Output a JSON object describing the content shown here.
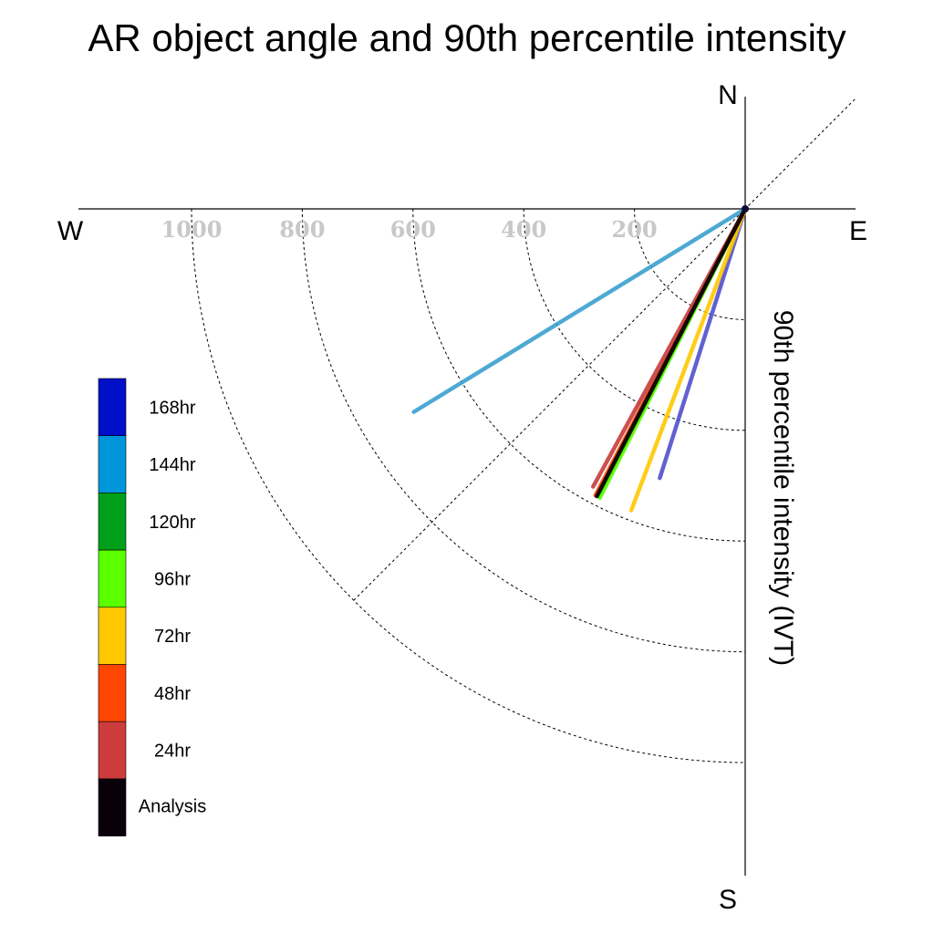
{
  "chart_data": {
    "type": "polar-vector",
    "title": "AR object angle and 90th percentile intensity",
    "ylabel": "90th percentile intensity (IVT)",
    "directions": {
      "north": "N",
      "south": "S",
      "east": "E",
      "west": "W"
    },
    "radial_ticks": [
      {
        "value": 200,
        "label": "200"
      },
      {
        "value": 400,
        "label": "400"
      },
      {
        "value": 600,
        "label": "600"
      },
      {
        "value": 800,
        "label": "800"
      },
      {
        "value": 1000,
        "label": "1000"
      }
    ],
    "rlim": [
      0,
      1000
    ],
    "grid": true,
    "legend_placement": "bottom-left",
    "series": [
      {
        "name": "168hr",
        "color": "#0010c8",
        "line_color": "#5050cc",
        "angle_deg": 197.6,
        "ivt": 510
      },
      {
        "name": "144hr",
        "color": "#0096dc",
        "line_color": "#3aa0cf",
        "angle_deg": 238.5,
        "ivt": 702
      },
      {
        "name": "120hr",
        "color": "#00a01a",
        "line_color": "#00a01a",
        "angle_deg": 207.0,
        "ivt": 583
      },
      {
        "name": "96hr",
        "color": "#5aff00",
        "line_color": "#5aff00",
        "angle_deg": 206.7,
        "ivt": 584
      },
      {
        "name": "72hr",
        "color": "#ffc800",
        "line_color": "#ffc800",
        "angle_deg": 200.7,
        "ivt": 582
      },
      {
        "name": "48hr",
        "color": "#ff4600",
        "line_color": "#ff4600",
        "angle_deg": 207.6,
        "ivt": 584
      },
      {
        "name": "24hr",
        "color": "#cd3c3c",
        "line_color": "#c83c3c",
        "angle_deg": 208.7,
        "ivt": 572
      },
      {
        "name": "Analysis",
        "color": "#0a000a",
        "line_color": "#000000",
        "angle_deg": 207.3,
        "ivt": 584
      }
    ]
  }
}
